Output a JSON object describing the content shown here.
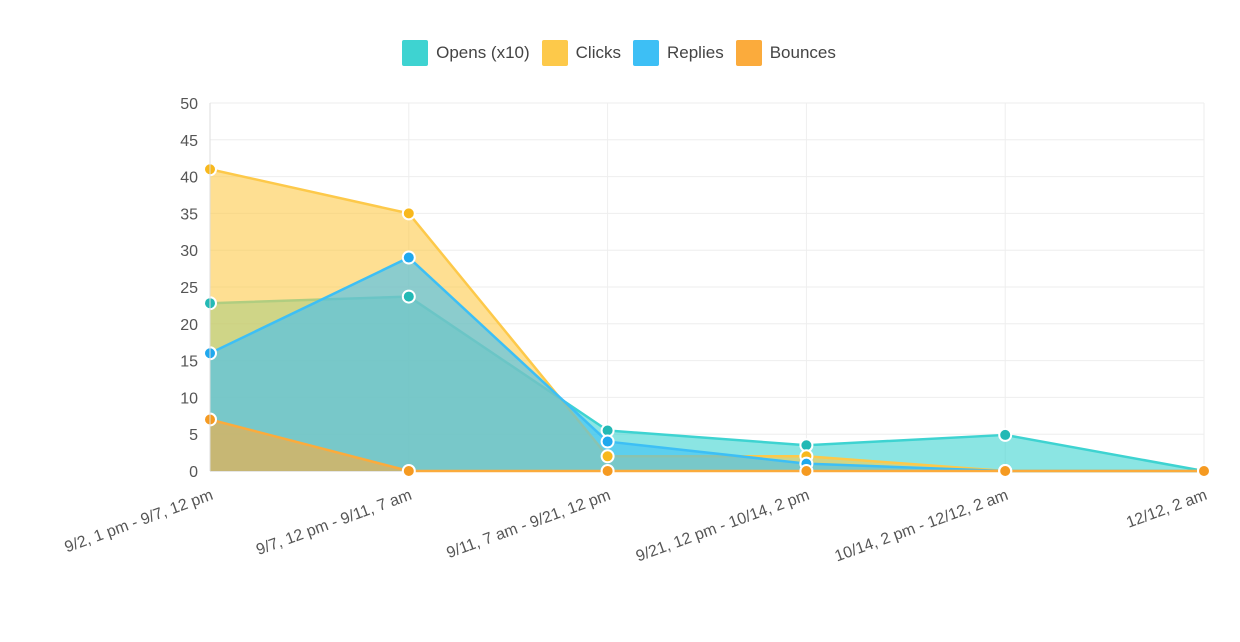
{
  "chart_data": {
    "type": "area",
    "categories": [
      "9/2, 1 pm - 9/7, 12 pm",
      "9/7, 12 pm - 9/11, 7 am",
      "9/11, 7 am - 9/21, 12 pm",
      "9/21, 12 pm - 10/14, 2 pm",
      "10/14, 2 pm - 12/12, 2 am",
      "12/12, 2 am"
    ],
    "series": [
      {
        "name": "Opens (x10)",
        "color": "#3ed3d1",
        "values": [
          22.8,
          23.7,
          5.5,
          3.5,
          4.9,
          0
        ]
      },
      {
        "name": "Clicks",
        "color": "#fdc94a",
        "values": [
          41,
          35,
          2,
          2,
          0,
          0
        ]
      },
      {
        "name": "Replies",
        "color": "#3dbff5",
        "values": [
          16,
          29,
          4,
          1,
          0,
          0
        ]
      },
      {
        "name": "Bounces",
        "color": "#fbab3c",
        "values": [
          7,
          0,
          0,
          0,
          0,
          0
        ]
      }
    ],
    "yticks": [
      "0",
      "5",
      "10",
      "15",
      "20",
      "25",
      "30",
      "35",
      "40",
      "45",
      "50"
    ],
    "ylim": [
      0,
      50
    ],
    "grid": true,
    "legend_position": "top-center"
  }
}
